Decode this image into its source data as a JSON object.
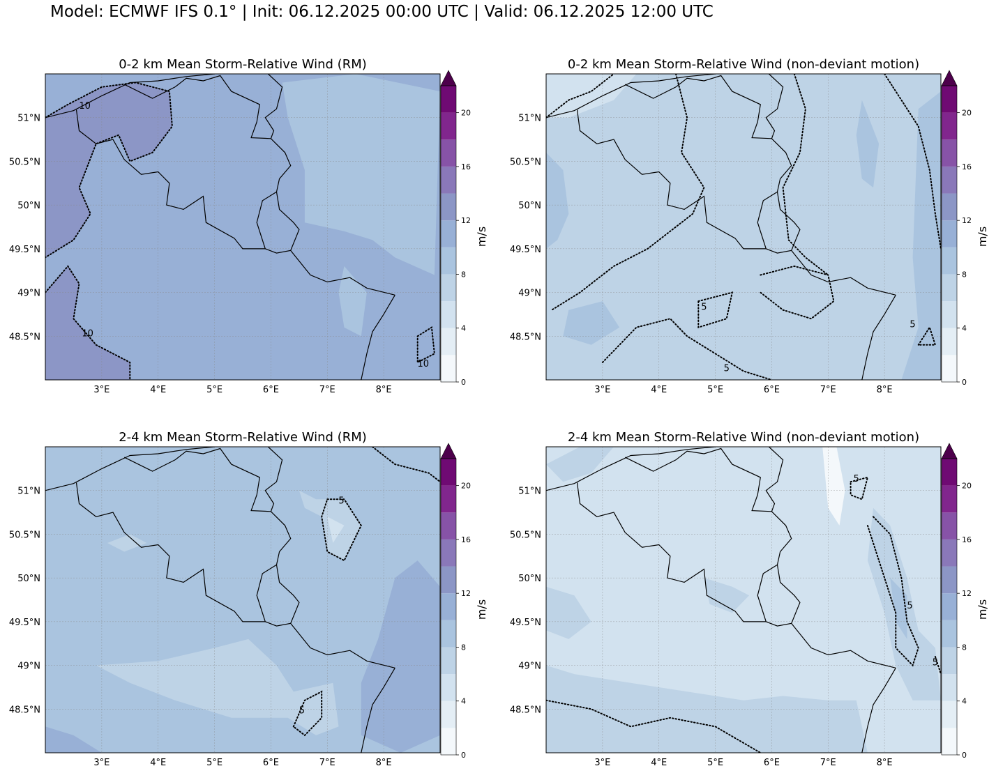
{
  "suptitle": "Model: ECMWF IFS 0.1° | Init: 06.12.2025 00:00 UTC | Valid: 06.12.2025 12:00 UTC",
  "colorbar": {
    "unit": "m/s",
    "ticks": [
      "0",
      "4",
      "8",
      "12",
      "16",
      "20"
    ],
    "levels": [
      0,
      2,
      4,
      6,
      8,
      10,
      12,
      14,
      16,
      18,
      20,
      22
    ],
    "colors": [
      "#f4f8fb",
      "#e4eef5",
      "#d2e2ef",
      "#bed3e6",
      "#aac4df",
      "#98b0d6",
      "#8c96c6",
      "#8a78b9",
      "#8753a7",
      "#81268d",
      "#6f0a73",
      "#4d004b"
    ],
    "extend": "max"
  },
  "axes": {
    "lon_ticks": [
      "3°E",
      "4°E",
      "5°E",
      "6°E",
      "7°E",
      "8°E"
    ],
    "lat_ticks": [
      "51°N",
      "50.5°N",
      "50°N",
      "49.5°N",
      "49°N",
      "48.5°N"
    ]
  },
  "panels": [
    {
      "title": "0-2 km Mean Storm-Relative Wind (RM)",
      "background_fill": "#98b0d6",
      "contour_label": "10"
    },
    {
      "title": "0-2 km Mean Storm-Relative Wind (non-deviant motion)",
      "background_fill": "#bed3e6",
      "contour_label": "5"
    },
    {
      "title": "2-4 km Mean Storm-Relative Wind (RM)",
      "background_fill": "#aac4df",
      "contour_label": "5"
    },
    {
      "title": "2-4 km Mean Storm-Relative Wind (non-deviant motion)",
      "background_fill": "#d2e2ef",
      "contour_label": "5"
    }
  ]
}
